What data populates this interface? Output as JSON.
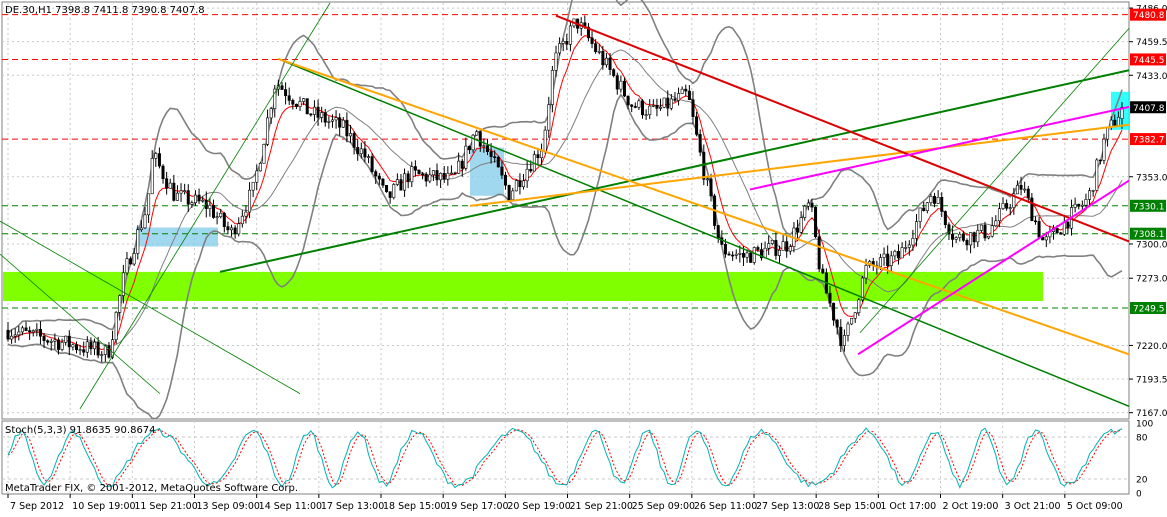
{
  "window": {
    "header": "DE.30,H1  7398.8 7411.8 7390.8 7407.8",
    "copyright": "MetaTrader FIX, © 2001-2012, MetaQuotes Software Corp."
  },
  "colors": {
    "background": "#ffffff",
    "candle": "#000000",
    "grid": "#c8c8c8",
    "bollinger": "#808080",
    "ma": "#ff0000",
    "green_line": "#008000",
    "orange_line": "#ffa500",
    "red_line": "#dd0000",
    "magenta_line": "#ff00ff",
    "support_zone": "#7fff00",
    "box_fill": "#87ceeb",
    "stoch_main": "#00b3b3",
    "stoch_signal": "#ff0000",
    "label_red": "#ff0000",
    "label_green": "#008000",
    "label_black": "#000000"
  },
  "chart_data": {
    "type": "candlestick",
    "symbol": "DE.30",
    "timeframe": "H1",
    "last_bar": {
      "open": 7398.8,
      "high": 7411.8,
      "low": 7390.8,
      "close": 7407.8
    },
    "y_ticks": [
      7486.0,
      7459.5,
      7433.0,
      7353.0,
      7300.0,
      7273.0,
      7220.0,
      7193.5,
      7167.0
    ],
    "ylim": [
      7162,
      7490
    ],
    "x_ticks": [
      "7 Sep 2012",
      "10 Sep 19:00",
      "11 Sep 21:00",
      "13 Sep 09:00",
      "14 Sep 11:00",
      "17 Sep 13:00",
      "18 Sep 15:00",
      "19 Sep 17:00",
      "20 Sep 19:00",
      "21 Sep 21:00",
      "25 Sep 09:00",
      "26 Sep 11:00",
      "27 Sep 13:00",
      "28 Sep 15:00",
      "1 Oct 17:00",
      "2 Oct 19:00",
      "3 Oct 21:00",
      "5 Oct 09:00"
    ],
    "price_levels": [
      {
        "label": "7480.8",
        "value": 7480.8,
        "color": "#ff0000",
        "style": "dashed"
      },
      {
        "label": "7445.5",
        "value": 7445.5,
        "color": "#ff0000",
        "style": "dashed"
      },
      {
        "label": "7407.8",
        "value": 7407.8,
        "color": "#000000",
        "style": "none"
      },
      {
        "label": "7382.7",
        "value": 7382.7,
        "color": "#ff0000",
        "style": "dashed"
      },
      {
        "label": "7330.1",
        "value": 7330.1,
        "color": "#008000",
        "style": "dashed"
      },
      {
        "label": "7308.1",
        "value": 7308.1,
        "color": "#008000",
        "style": "dashed"
      },
      {
        "label": "7249.5",
        "value": 7249.5,
        "color": "#008000",
        "style": "dashed"
      }
    ],
    "stochastic": {
      "title": "Stoch(5,3,3) 91.8635 90.8674",
      "main": 91.8635,
      "signal": 90.8674,
      "levels": [
        "100",
        "80",
        "20",
        "0"
      ]
    }
  }
}
